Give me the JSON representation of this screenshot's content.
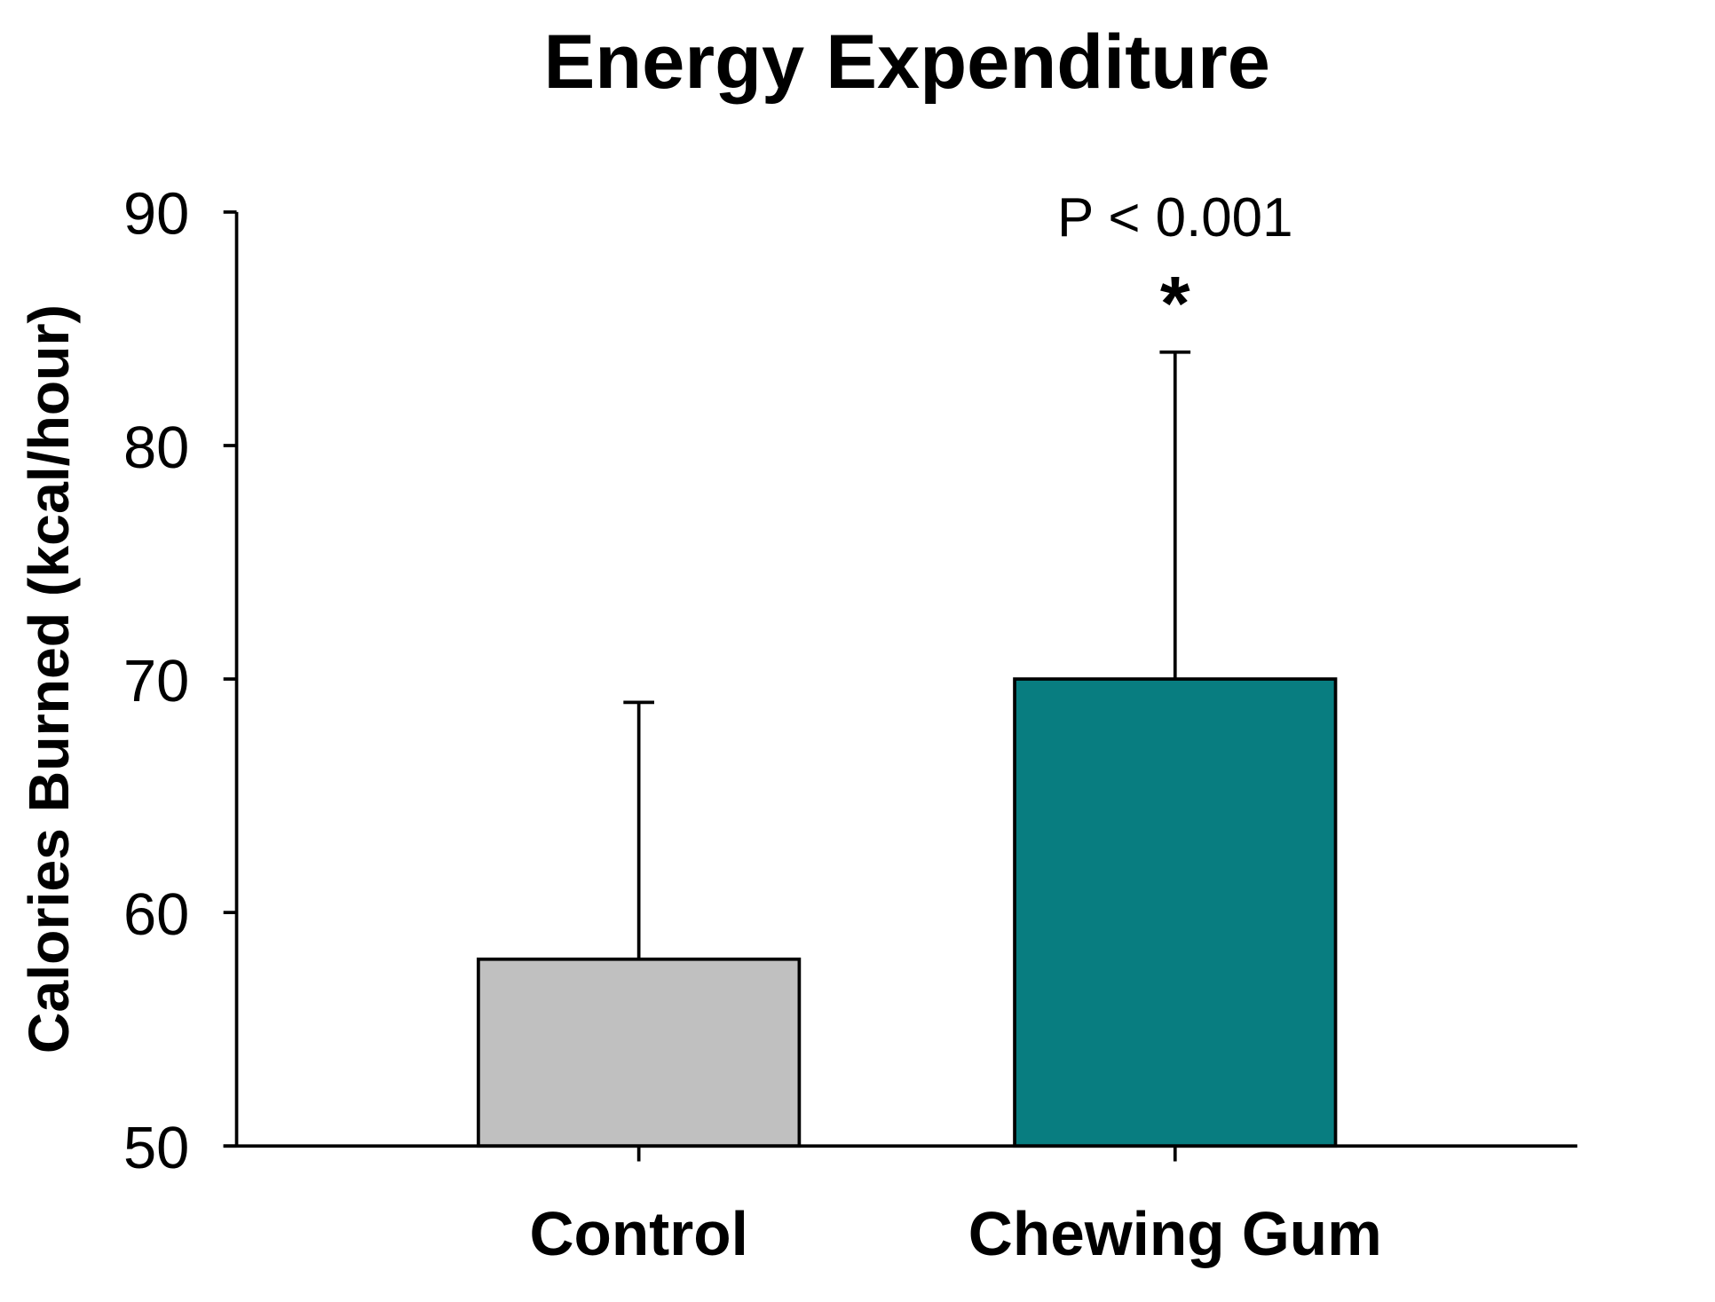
{
  "chart_data": {
    "type": "bar",
    "title": "Energy Expenditure",
    "xlabel": "",
    "ylabel": "Calories Burned (kcal/hour)",
    "categories": [
      "Control",
      "Chewing Gum"
    ],
    "values": [
      58,
      70
    ],
    "error_upper": [
      69,
      84
    ],
    "colors": [
      "#c0c0c0",
      "#087d80"
    ],
    "ylim": [
      50,
      90
    ],
    "yticks": [
      50,
      60,
      70,
      80,
      90
    ],
    "grid": false,
    "annotations": {
      "p_value": "P < 0.001",
      "significance": "*"
    }
  }
}
